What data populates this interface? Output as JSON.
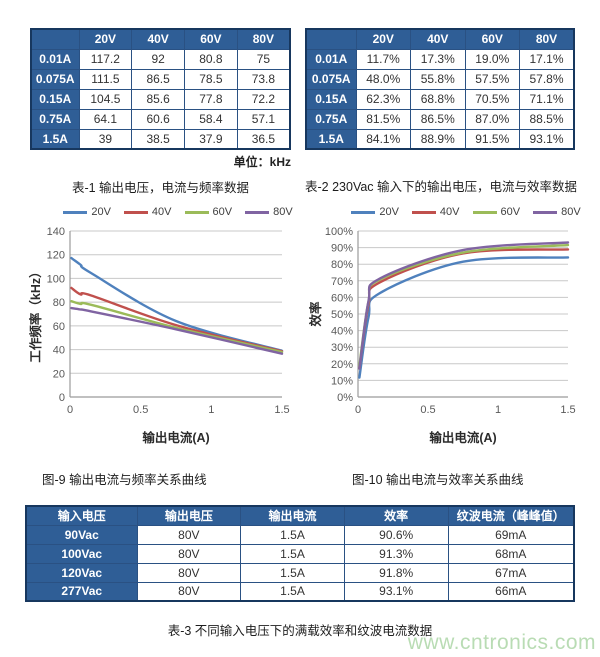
{
  "table1": {
    "caption": "表-1 输出电压，电流与频率数据",
    "unit_note": "单位：kHz",
    "col_headers": [
      "",
      "20V",
      "40V",
      "60V",
      "80V"
    ],
    "rows": [
      {
        "label": "0.01A",
        "values": [
          "117.2",
          "92",
          "80.8",
          "75"
        ]
      },
      {
        "label": "0.075A",
        "values": [
          "111.5",
          "86.5",
          "78.5",
          "73.8"
        ]
      },
      {
        "label": "0.15A",
        "values": [
          "104.5",
          "85.6",
          "77.8",
          "72.2"
        ]
      },
      {
        "label": "0.75A",
        "values": [
          "64.1",
          "60.6",
          "58.4",
          "57.1"
        ]
      },
      {
        "label": "1.5A",
        "values": [
          "39",
          "38.5",
          "37.9",
          "36.5"
        ]
      }
    ]
  },
  "table2": {
    "caption": "表-2 230Vac 输入下的输出电压，电流与效率数据",
    "col_headers": [
      "",
      "20V",
      "40V",
      "60V",
      "80V"
    ],
    "rows": [
      {
        "label": "0.01A",
        "values": [
          "11.7%",
          "17.3%",
          "19.0%",
          "17.1%"
        ]
      },
      {
        "label": "0.075A",
        "values": [
          "48.0%",
          "55.8%",
          "57.5%",
          "57.8%"
        ]
      },
      {
        "label": "0.15A",
        "values": [
          "62.3%",
          "68.8%",
          "70.5%",
          "71.1%"
        ]
      },
      {
        "label": "0.75A",
        "values": [
          "81.5%",
          "86.5%",
          "87.0%",
          "88.5%"
        ]
      },
      {
        "label": "1.5A",
        "values": [
          "84.1%",
          "88.9%",
          "91.5%",
          "93.1%"
        ]
      }
    ]
  },
  "chart_data": [
    {
      "id": "frequency-chart",
      "type": "line",
      "title": "图-9 输出电流与频率关系曲线",
      "xlabel": "输出电流(A)",
      "ylabel": "工作频率（kHz）",
      "x": [
        0.01,
        0.075,
        0.15,
        0.75,
        1.5
      ],
      "xlim": [
        0,
        1.5
      ],
      "xticks": [
        "0",
        "0.5",
        "1",
        "1.5"
      ],
      "ylim": [
        0,
        140
      ],
      "yticks": [
        "0",
        "20",
        "40",
        "60",
        "80",
        "100",
        "120",
        "140"
      ],
      "grid": "horizontal",
      "legend_position": "top",
      "series": [
        {
          "name": "20V",
          "color": "#4F81BD",
          "values": [
            117.2,
            111.5,
            104.5,
            64.1,
            39
          ]
        },
        {
          "name": "40V",
          "color": "#C0504D",
          "values": [
            92,
            86.5,
            85.6,
            60.6,
            38.5
          ]
        },
        {
          "name": "60V",
          "color": "#9BBB59",
          "values": [
            80.8,
            78.5,
            77.8,
            58.4,
            37.9
          ]
        },
        {
          "name": "80V",
          "color": "#8064A2",
          "values": [
            75,
            73.8,
            72.2,
            57.1,
            36.5
          ]
        }
      ]
    },
    {
      "id": "efficiency-chart",
      "type": "line",
      "title": "图-10 输出电流与效率关系曲线",
      "xlabel": "输出电流(A)",
      "ylabel": "效率",
      "x": [
        0.01,
        0.075,
        0.15,
        0.75,
        1.5
      ],
      "xlim": [
        0,
        1.5
      ],
      "xticks": [
        "0",
        "0.5",
        "1",
        "1.5"
      ],
      "ylim": [
        0,
        100
      ],
      "yticks": [
        "0%",
        "10%",
        "20%",
        "30%",
        "40%",
        "50%",
        "60%",
        "70%",
        "80%",
        "90%",
        "100%"
      ],
      "grid": "horizontal",
      "legend_position": "top",
      "series": [
        {
          "name": "20V",
          "color": "#4F81BD",
          "values": [
            11.7,
            48.0,
            62.3,
            81.5,
            84.1
          ]
        },
        {
          "name": "40V",
          "color": "#C0504D",
          "values": [
            17.3,
            55.8,
            68.8,
            86.5,
            88.9
          ]
        },
        {
          "name": "60V",
          "color": "#9BBB59",
          "values": [
            19.0,
            57.5,
            70.5,
            87.0,
            91.5
          ]
        },
        {
          "name": "80V",
          "color": "#8064A2",
          "values": [
            17.1,
            57.8,
            71.1,
            88.5,
            93.1
          ]
        }
      ]
    }
  ],
  "table3": {
    "caption": "表-3 不同输入电压下的满载效率和纹波电流数据",
    "col_headers": [
      "输入电压",
      "输出电压",
      "输出电流",
      "效率",
      "纹波电流（峰峰值）"
    ],
    "rows": [
      {
        "label": "90Vac",
        "values": [
          "80V",
          "1.5A",
          "90.6%",
          "69mA"
        ]
      },
      {
        "label": "100Vac",
        "values": [
          "80V",
          "1.5A",
          "91.3%",
          "68mA"
        ]
      },
      {
        "label": "120Vac",
        "values": [
          "80V",
          "1.5A",
          "91.8%",
          "67mA"
        ]
      },
      {
        "label": "277Vac",
        "values": [
          "80V",
          "1.5A",
          "93.1%",
          "66mA"
        ]
      }
    ]
  },
  "watermark": "www.cntronics.com"
}
